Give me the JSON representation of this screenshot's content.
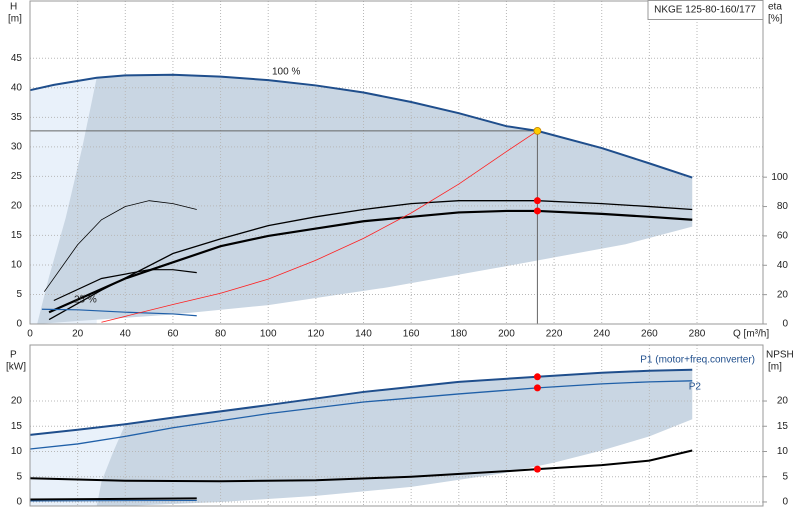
{
  "chart_data": [
    {
      "type": "line",
      "title": "NKGE 125-80-160/177",
      "xlabel": "Q [m³/h]",
      "ylabel": "H",
      "yunit": "[m]",
      "y2label": "eta",
      "y2unit": "[%]",
      "annotations": [
        "100 %",
        "25 %"
      ],
      "xlim": [
        0,
        307.7
      ],
      "xticks": [
        0,
        20,
        40,
        60,
        80,
        100,
        120,
        140,
        160,
        180,
        200,
        220,
        240,
        260,
        280
      ],
      "ylim": [
        0,
        54.7
      ],
      "yticks": [
        0,
        5,
        10,
        15,
        20,
        25,
        30,
        35,
        40,
        45
      ],
      "y2lim": [
        0,
        220
      ],
      "y2ticks": [
        0,
        20,
        40,
        60,
        80,
        100
      ],
      "grid": true,
      "duty_x": 213,
      "envelope": {
        "color": "#c9d6e3",
        "light_color": "#e9f1fa",
        "x": [
          278,
          250,
          200,
          150,
          100,
          60,
          20,
          3,
          8,
          15,
          22
        ],
        "values": [
          16.5,
          13.5,
          9.8,
          6.2,
          3.2,
          1.6,
          0.5,
          0,
          8,
          18,
          30
        ]
      },
      "series": [
        {
          "color": "#1f4e8c",
          "width": 2,
          "marker_color": "#ffcc00",
          "x": [
            0,
            10,
            28,
            40,
            60,
            80,
            100,
            120,
            140,
            160,
            180,
            200,
            213,
            240,
            260,
            278
          ],
          "values": [
            39.6,
            40.5,
            41.7,
            42.1,
            42.2,
            41.9,
            41.3,
            40.4,
            39.2,
            37.6,
            35.7,
            33.5,
            32.7,
            29.8,
            27.2,
            24.8
          ]
        },
        {
          "color": "#000000",
          "width": 1.3,
          "axis": "y2",
          "marker_color": "#ff0000",
          "x": [
            8,
            30,
            60,
            80,
            100,
            120,
            140,
            160,
            180,
            200,
            213,
            240,
            260,
            278
          ],
          "values": [
            3,
            23,
            48,
            58,
            67,
            73,
            78,
            82,
            84,
            84,
            84,
            82,
            80,
            78
          ]
        },
        {
          "color": "#000000",
          "width": 2.2,
          "axis": "y2",
          "marker_color": "#ff0000",
          "x": [
            8,
            40,
            60,
            80,
            100,
            120,
            140,
            160,
            180,
            200,
            213,
            240,
            260,
            278
          ],
          "values": [
            8,
            31,
            42,
            53,
            60,
            65,
            70,
            73,
            76,
            77,
            77,
            75,
            73,
            71
          ]
        },
        {
          "color": "#000000",
          "width": 0.8,
          "axis": "y2",
          "x": [
            6,
            20,
            30,
            40,
            50,
            60,
            70
          ],
          "values": [
            22,
            54,
            71,
            80,
            84,
            82,
            78
          ]
        },
        {
          "color": "#000000",
          "width": 1.2,
          "axis": "y2",
          "x": [
            10,
            30,
            50,
            60,
            70
          ],
          "values": [
            16,
            31,
            37,
            37,
            35
          ]
        },
        {
          "color": "#1f5fa8",
          "width": 1.2,
          "x": [
            5,
            20,
            40,
            60,
            70
          ],
          "values": [
            2.5,
            2.4,
            2.0,
            1.7,
            1.4
          ]
        },
        {
          "color": "#ff2020",
          "width": 0.8,
          "x": [
            30,
            60,
            80,
            100,
            120,
            140,
            160,
            180,
            200,
            213
          ],
          "values": [
            0.3,
            3.3,
            5.2,
            7.6,
            10.8,
            14.5,
            18.8,
            23.7,
            29.2,
            32.7
          ]
        }
      ]
    },
    {
      "type": "line",
      "ylabel": "P",
      "yunit": "[kW]",
      "y2label": "NPSH",
      "y2unit": "[m]",
      "xlim": [
        0,
        307.7
      ],
      "xticks": [
        0,
        20,
        40,
        60,
        80,
        100,
        120,
        140,
        160,
        180,
        200,
        220,
        240,
        260,
        280
      ],
      "ylim": [
        -0.8,
        31.1
      ],
      "yticks": [
        0,
        5,
        10,
        15,
        20
      ],
      "y2lim": [
        -0.8,
        31.1
      ],
      "y2ticks": [
        0,
        5,
        10,
        15,
        20
      ],
      "grid": true,
      "duty_x": 213,
      "envelope": {
        "color": "#c9d6e3",
        "light_color": "#e9f1fa",
        "x": [
          278,
          260,
          240,
          220,
          200,
          160,
          120,
          80,
          40,
          28,
          30,
          35
        ],
        "values": [
          16.4,
          13,
          10.2,
          7.8,
          5.8,
          3,
          1.2,
          0,
          -0.8,
          -0.8,
          4,
          10
        ]
      },
      "series": [
        {
          "name": "P1 (motor+freq.converter)",
          "color": "#1f4e8c",
          "width": 2,
          "marker_color": "#ff0000",
          "x": [
            0,
            20,
            40,
            60,
            100,
            140,
            180,
            213,
            240,
            260,
            278
          ],
          "values": [
            13.3,
            14.3,
            15.4,
            16.7,
            19.2,
            21.8,
            23.8,
            24.8,
            25.6,
            26,
            26.2
          ]
        },
        {
          "name": "P2",
          "color": "#2060a8",
          "width": 1.3,
          "marker_color": "#ff0000",
          "x": [
            0,
            20,
            40,
            60,
            100,
            140,
            180,
            213,
            240,
            260,
            278
          ],
          "values": [
            10.5,
            11.5,
            13,
            14.7,
            17.5,
            19.8,
            21.4,
            22.6,
            23.4,
            23.8,
            24
          ]
        },
        {
          "color": "#000000",
          "width": 2,
          "axis": "y2",
          "marker_color": "#ff0000",
          "x": [
            0,
            40,
            80,
            120,
            160,
            200,
            213,
            240,
            260,
            278
          ],
          "values": [
            4.7,
            4.2,
            4.1,
            4.3,
            5.0,
            6.1,
            6.5,
            7.3,
            8.2,
            10.2
          ]
        },
        {
          "color": "#000000",
          "width": 2,
          "x": [
            0,
            70
          ],
          "values": [
            0.5,
            0.7
          ]
        },
        {
          "color": "#1f5fa8",
          "width": 1,
          "x": [
            0,
            70
          ],
          "values": [
            0.2,
            0.3
          ]
        }
      ]
    }
  ]
}
